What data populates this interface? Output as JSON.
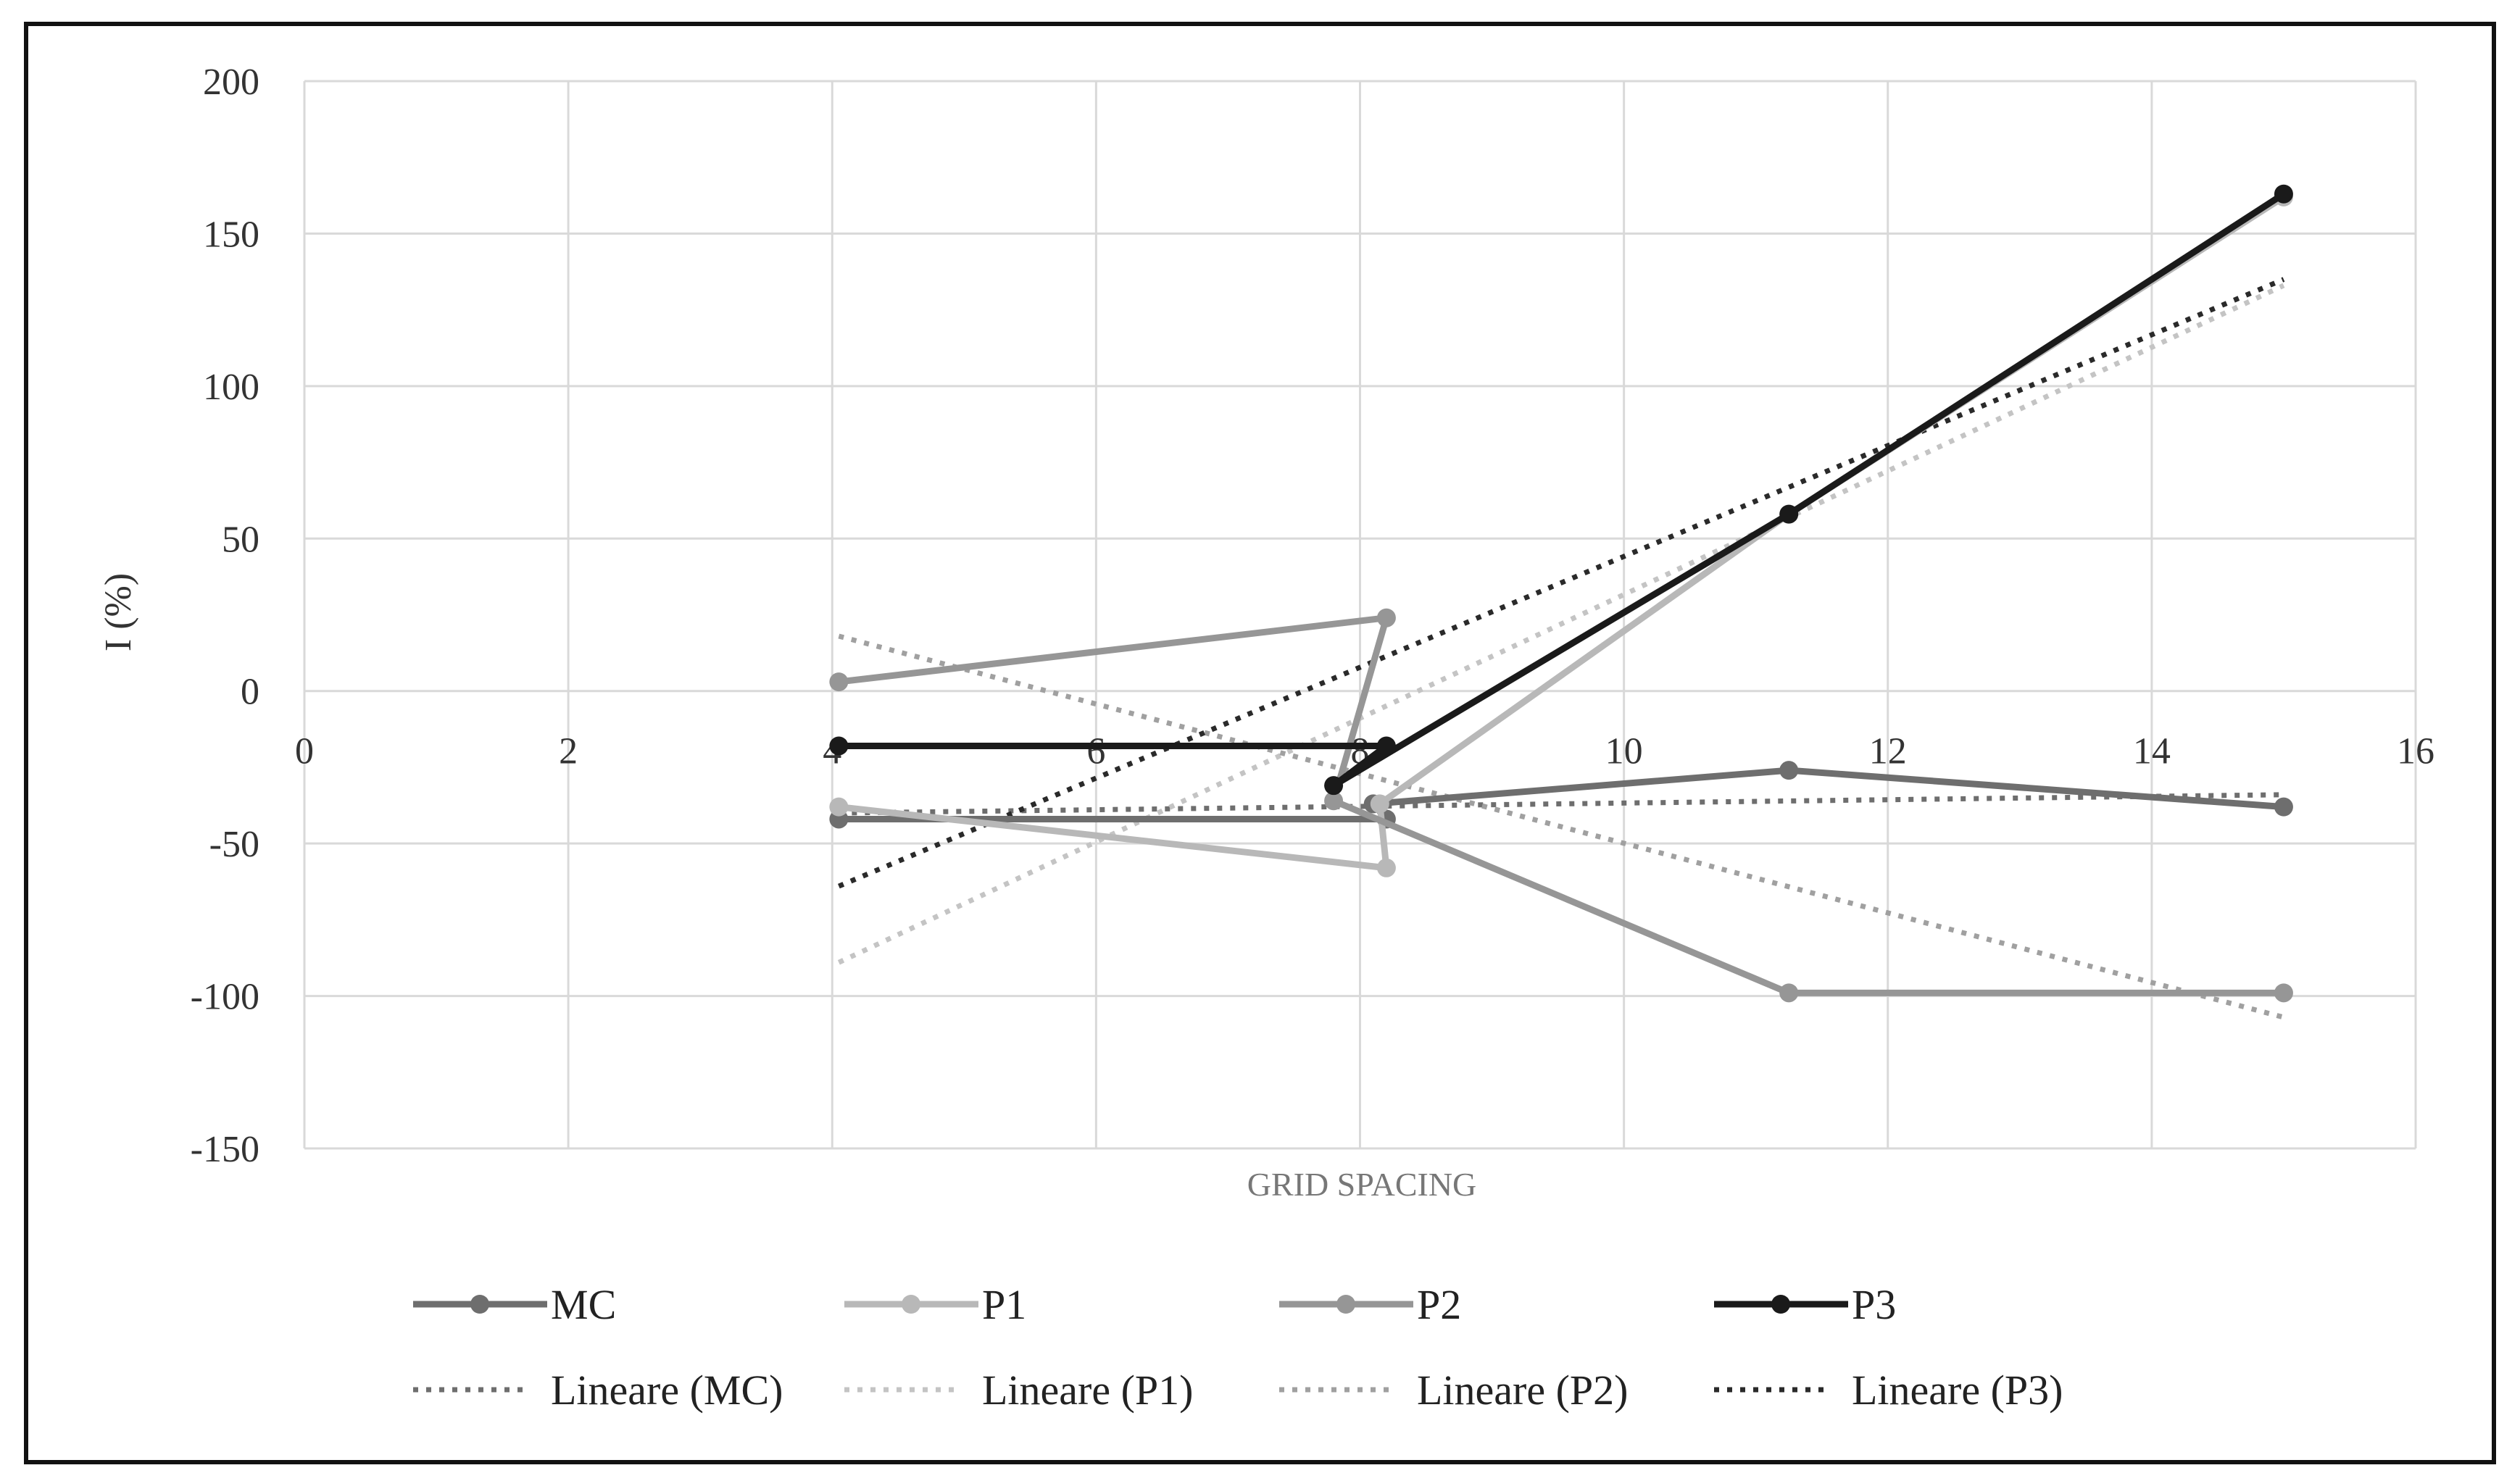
{
  "chart_data": {
    "type": "scatter",
    "xlabel": "GRID SPACING",
    "ylabel": "I (%)",
    "xlim": [
      0,
      16
    ],
    "ylim": [
      -150,
      200
    ],
    "x_ticks": [
      0,
      2,
      4,
      6,
      8,
      10,
      12,
      14,
      16
    ],
    "y_ticks": [
      200,
      150,
      100,
      50,
      0,
      -50,
      -100,
      -150
    ],
    "x_tick_labels": [
      "0",
      "2",
      "4",
      "6",
      "8",
      "10",
      "12",
      "14",
      "16"
    ],
    "y_tick_labels": [
      "200",
      "150",
      "100",
      "50",
      "0",
      "-50",
      "-100",
      "-150"
    ],
    "grid": true,
    "legend_position": "bottom",
    "series": [
      {
        "name": "MC",
        "color": "#6e6e6e",
        "points": [
          [
            4.05,
            -42
          ],
          [
            8.2,
            -42
          ],
          [
            8.1,
            -37
          ],
          [
            11.25,
            -26
          ],
          [
            15,
            -38
          ]
        ]
      },
      {
        "name": "P1",
        "color": "#b8b8b8",
        "points": [
          [
            4.05,
            -38
          ],
          [
            8.2,
            -58
          ],
          [
            8.15,
            -37
          ],
          [
            11.25,
            58
          ],
          [
            15,
            162
          ]
        ]
      },
      {
        "name": "P2",
        "color": "#969696",
        "points": [
          [
            4.05,
            3
          ],
          [
            8.2,
            24
          ],
          [
            7.8,
            -36
          ],
          [
            11.25,
            -99
          ],
          [
            15,
            -99
          ]
        ]
      },
      {
        "name": "P3",
        "color": "#1a1a1a",
        "points": [
          [
            4.05,
            -18
          ],
          [
            8.2,
            -18
          ],
          [
            7.8,
            -31
          ],
          [
            11.25,
            58
          ],
          [
            15,
            163
          ]
        ]
      }
    ],
    "trendlines": [
      {
        "name": "Lineare (MC)",
        "color": "#6e6e6e",
        "from": [
          4.05,
          -40
        ],
        "to": [
          15,
          -34
        ]
      },
      {
        "name": "Lineare (P1)",
        "color": "#c4c4c4",
        "from": [
          4.05,
          -89
        ],
        "to": [
          15,
          133
        ]
      },
      {
        "name": "Lineare (P2)",
        "color": "#a0a0a0",
        "from": [
          4.05,
          18
        ],
        "to": [
          15,
          -107
        ]
      },
      {
        "name": "Lineare (P3)",
        "color": "#2a2a2a",
        "from": [
          4.05,
          -64
        ],
        "to": [
          15,
          135
        ]
      }
    ]
  }
}
